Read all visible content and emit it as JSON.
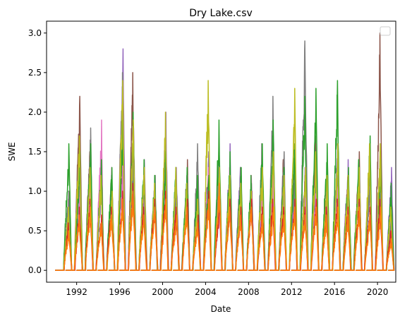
{
  "chart_data": {
    "type": "line",
    "title": "Dry Lake.csv",
    "xlabel": "Date",
    "ylabel": "SWE",
    "xlim": [
      1989.2,
      2021.7
    ],
    "ylim": [
      -0.15,
      3.15
    ],
    "x_ticks": [
      "1992",
      "1996",
      "2000",
      "2004",
      "2008",
      "2012",
      "2016",
      "2020"
    ],
    "y_ticks": [
      "0.0",
      "0.5",
      "1.0",
      "1.5",
      "2.0",
      "2.5",
      "3.0"
    ],
    "grid": false,
    "legend": {
      "placement": "top-right",
      "entries": []
    },
    "x_start": 1990,
    "x_end": 2021,
    "series": [
      {
        "color": "#9467bd",
        "peaks": [
          0.7,
          0.9,
          1.6,
          1.2,
          1.0,
          2.8,
          1.8,
          1.4,
          1.1,
          2.0,
          1.3,
          1.2,
          0.9,
          1.5,
          1.2,
          1.6,
          1.3,
          1.1,
          0.8,
          1.4,
          1.2,
          1.0,
          1.3,
          1.2,
          1.1,
          1.6,
          1.4,
          1.2,
          1.4,
          1.5,
          1.3
        ]
      },
      {
        "color": "#8c564b",
        "peaks": [
          1.0,
          2.2,
          1.5,
          1.3,
          1.2,
          1.4,
          2.5,
          1.1,
          1.0,
          1.5,
          1.2,
          1.4,
          0.9,
          1.2,
          1.3,
          1.1,
          1.2,
          1.0,
          1.1,
          1.2,
          1.4,
          1.3,
          1.2,
          1.7,
          1.1,
          1.3,
          1.2,
          1.5,
          1.2,
          3.0,
          0.7
        ]
      },
      {
        "color": "#e377c2",
        "peaks": [
          0.9,
          1.0,
          1.1,
          1.9,
          1.3,
          1.4,
          1.6,
          0.9,
          1.1,
          1.3,
          1.0,
          1.2,
          0.8,
          1.3,
          1.1,
          1.3,
          1.0,
          1.2,
          1.1,
          1.2,
          1.0,
          1.2,
          1.1,
          1.2,
          1.0,
          1.2,
          1.1,
          1.3,
          1.2,
          1.1,
          0.6
        ]
      },
      {
        "color": "#7f7f7f",
        "peaks": [
          1.0,
          1.4,
          1.8,
          1.1,
          1.2,
          2.5,
          1.5,
          1.3,
          1.2,
          1.6,
          1.1,
          1.2,
          1.6,
          1.2,
          1.4,
          1.2,
          1.3,
          1.1,
          1.6,
          2.2,
          1.5,
          1.3,
          2.9,
          1.4,
          1.2,
          1.5,
          1.2,
          1.3,
          1.2,
          1.3,
          0.7
        ]
      },
      {
        "color": "#2ca02c",
        "peaks": [
          1.6,
          1.5,
          1.6,
          1.4,
          1.3,
          1.9,
          2.0,
          1.4,
          1.2,
          1.5,
          1.3,
          1.3,
          1.2,
          1.2,
          1.9,
          1.5,
          1.3,
          1.2,
          1.6,
          1.9,
          1.3,
          1.6,
          2.2,
          2.3,
          1.6,
          2.4,
          1.3,
          1.4,
          1.7,
          1.4,
          1.1
        ]
      },
      {
        "color": "#bcbd22",
        "peaks": [
          0.8,
          1.7,
          1.3,
          1.2,
          1.0,
          2.4,
          1.9,
          1.3,
          1.1,
          2.0,
          1.3,
          1.1,
          0.9,
          2.4,
          1.3,
          1.2,
          1.1,
          1.0,
          1.3,
          1.5,
          1.2,
          2.3,
          1.3,
          1.5,
          1.2,
          1.6,
          1.2,
          1.3,
          1.6,
          1.6,
          0.8
        ]
      },
      {
        "color": "#d62728",
        "peaks": [
          0.6,
          0.8,
          0.9,
          0.7,
          0.8,
          1.0,
          1.1,
          0.8,
          0.9,
          1.0,
          0.8,
          0.9,
          0.7,
          1.0,
          0.9,
          0.9,
          0.8,
          0.9,
          0.8,
          0.9,
          0.8,
          0.9,
          0.8,
          0.9,
          0.8,
          0.9,
          0.8,
          0.9,
          0.8,
          0.9,
          0.5
        ]
      },
      {
        "color": "#ff7f0e",
        "peaks": [
          0.5,
          0.7,
          0.8,
          0.6,
          0.7,
          0.9,
          1.0,
          0.7,
          0.8,
          0.9,
          0.7,
          0.8,
          0.6,
          0.9,
          1.1,
          0.8,
          0.7,
          0.8,
          0.7,
          0.8,
          0.7,
          0.8,
          0.7,
          0.8,
          0.7,
          0.8,
          0.7,
          0.8,
          0.7,
          0.8,
          0.4
        ]
      }
    ]
  }
}
